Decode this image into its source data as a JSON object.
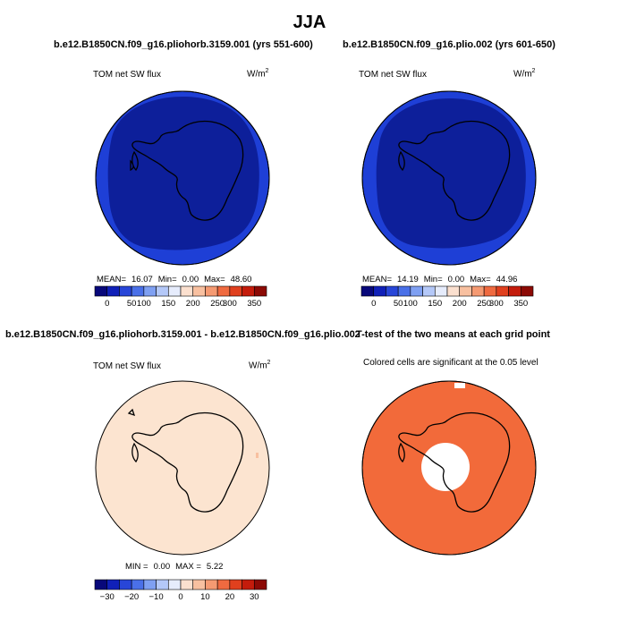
{
  "main_title": "JJA",
  "colors": {
    "dark_blue": "#0d1f9a",
    "mid_blue": "#1e3fd6",
    "peach": "#fce4d0",
    "sig_orange": "#f26a3a",
    "land_outline": "#000000"
  },
  "panels": [
    {
      "title": "b.e12.B1850CN.f09_g16.pliohorb.3159.001 (yrs 551-600)",
      "var_label": "TOM net SW flux",
      "unit_label": "W/m",
      "unit_sup": "2",
      "stats": {
        "mean_label": "MEAN=",
        "mean": "16.07",
        "min_label": "Min=",
        "min": "0.00",
        "max_label": "Max=",
        "max": "48.60"
      }
    },
    {
      "title": "b.e12.B1850CN.f09_g16.plio.002 (yrs 601-650)",
      "var_label": "TOM net SW flux",
      "unit_label": "W/m",
      "unit_sup": "2",
      "stats": {
        "mean_label": "MEAN=",
        "mean": "14.19",
        "min_label": "Min=",
        "min": "0.00",
        "max_label": "Max=",
        "max": "44.96"
      }
    },
    {
      "title": "b.e12.B1850CN.f09_g16.pliohorb.3159.001 - b.e12.B1850CN.f09_g16.plio.002",
      "var_label": "TOM net SW flux",
      "unit_label": "W/m",
      "unit_sup": "2",
      "stats": {
        "min_label": "MIN =",
        "min": "0.00",
        "max_label": "MAX =",
        "max": "5.22"
      }
    },
    {
      "title": "T-test of the two means at each grid point",
      "note": "Colored cells are significant at the 0.05 level"
    }
  ],
  "chart_data": [
    {
      "type": "heatmap",
      "panel": "top-left",
      "projection": "south-polar-stereographic",
      "colorbar": {
        "levels": [
          0,
          50,
          100,
          150,
          200,
          250,
          300,
          350
        ],
        "tick_labels": [
          "0",
          "50",
          "100",
          "150",
          "200",
          "250",
          "300",
          "350"
        ],
        "colors": [
          "#08087a",
          "#1020b8",
          "#2846d8",
          "#4a70e8",
          "#7fa0f2",
          "#b4c8f8",
          "#e6ecfc",
          "#fbe0cf",
          "#f8c0a0",
          "#f59a72",
          "#ef6a40",
          "#e0401e",
          "#c41c0c",
          "#8c0a05"
        ]
      },
      "values": {
        "mean": 16.07,
        "min": 0.0,
        "max": 48.6
      }
    },
    {
      "type": "heatmap",
      "panel": "top-right",
      "projection": "south-polar-stereographic",
      "colorbar": {
        "levels": [
          0,
          50,
          100,
          150,
          200,
          250,
          300,
          350
        ],
        "tick_labels": [
          "0",
          "50",
          "100",
          "150",
          "200",
          "250",
          "300",
          "350"
        ],
        "colors": [
          "#08087a",
          "#1020b8",
          "#2846d8",
          "#4a70e8",
          "#7fa0f2",
          "#b4c8f8",
          "#e6ecfc",
          "#fbe0cf",
          "#f8c0a0",
          "#f59a72",
          "#ef6a40",
          "#e0401e",
          "#c41c0c",
          "#8c0a05"
        ]
      },
      "values": {
        "mean": 14.19,
        "min": 0.0,
        "max": 44.96
      }
    },
    {
      "type": "heatmap",
      "panel": "bottom-left",
      "projection": "south-polar-stereographic",
      "colorbar": {
        "levels": [
          -30,
          -20,
          -10,
          0,
          10,
          20,
          30
        ],
        "tick_labels": [
          "−30",
          "−20",
          "−10",
          "0",
          "10",
          "20",
          "30"
        ],
        "colors": [
          "#08087a",
          "#1020b8",
          "#2846d8",
          "#4a70e8",
          "#7fa0f2",
          "#b4c8f8",
          "#e6ecfc",
          "#fbe0cf",
          "#f8c0a0",
          "#f59a72",
          "#ef6a40",
          "#e0401e",
          "#c41c0c",
          "#8c0a05"
        ]
      },
      "values": {
        "min": 0.0,
        "max": 5.22
      }
    },
    {
      "type": "heatmap",
      "panel": "bottom-right",
      "projection": "south-polar-stereographic",
      "significance_level": 0.05
    }
  ]
}
